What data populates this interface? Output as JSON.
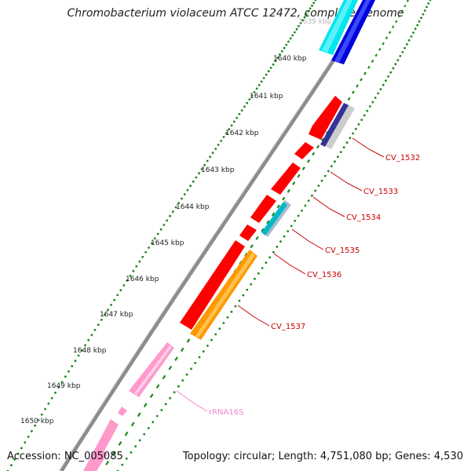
{
  "title": "Chromobacterium violaceum ATCC 12472, complete genome",
  "footer": {
    "accession": "Accession: NC_005085",
    "summary": "Topology: circular; Length: 4,751,080 bp; Genes: 4,530"
  },
  "ruler": {
    "ticks": [
      "1640 kbp",
      "1641 kbp",
      "1642 kbp",
      "1643 kbp",
      "1644 kbp",
      "1645 kbp",
      "1646 kbp",
      "1647 kbp",
      "1648 kbp",
      "1649 kbp",
      "1650 kbp"
    ],
    "partial_top_tick": "1639 kbp"
  },
  "gene_labels": [
    "CV_1532",
    "CV_1533",
    "CV_1534",
    "CV_1535",
    "CV_1536",
    "CV_1537",
    "rRNA16S"
  ],
  "colors": {
    "cds_red": "#ff0000",
    "orange": "#ff9900",
    "pink": "#ff99cc",
    "cyan": "#00e5ee",
    "blue": "#0000dd",
    "navy": "#333399",
    "backbone": "#888888",
    "green_dots": "#1a8a1a",
    "label_red": "#cc0000",
    "label_pink": "#ee88cc"
  }
}
